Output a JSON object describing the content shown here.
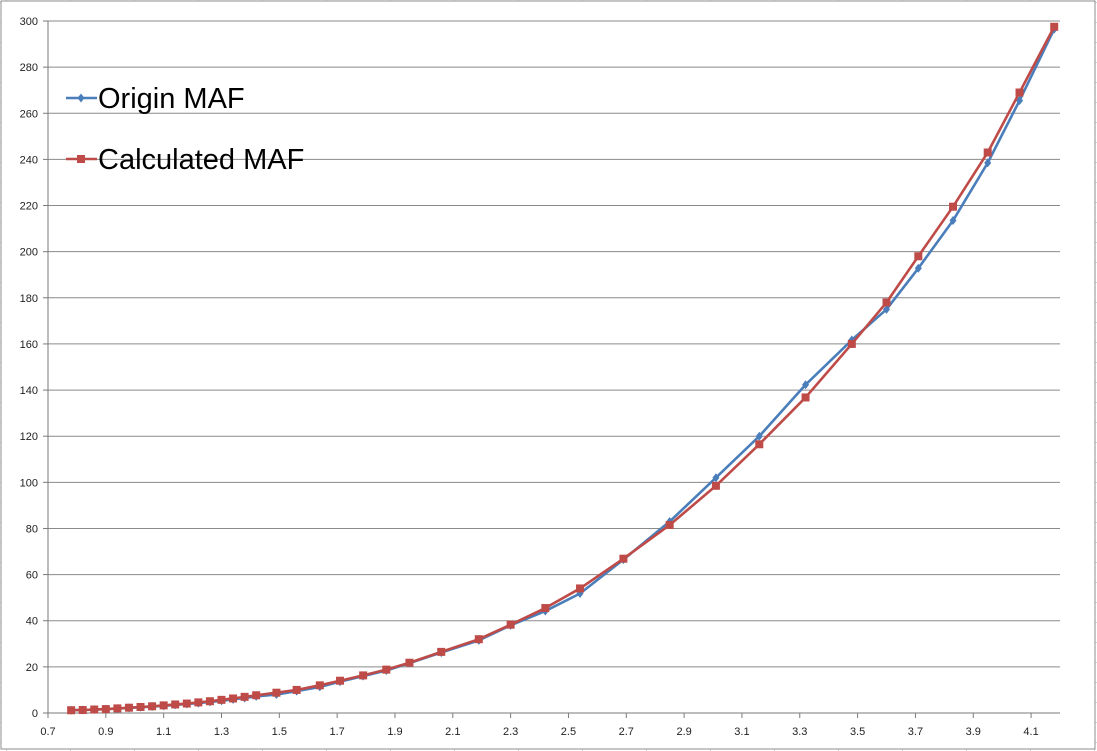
{
  "chart_data": {
    "type": "line",
    "title": "",
    "xlabel": "",
    "ylabel": "",
    "xlim": [
      0.7,
      4.2
    ],
    "ylim": [
      0,
      300
    ],
    "x_ticks": [
      "0.7",
      "0.9",
      "1.1",
      "1.3",
      "1.5",
      "1.7",
      "1.9",
      "2.1",
      "2.3",
      "2.5",
      "2.7",
      "2.9",
      "3.1",
      "3.3",
      "3.5",
      "3.7",
      "3.9",
      "4.1"
    ],
    "y_ticks": [
      "0",
      "20",
      "40",
      "60",
      "80",
      "100",
      "120",
      "140",
      "160",
      "180",
      "200",
      "220",
      "240",
      "260",
      "280",
      "300"
    ],
    "grid": "horizontal",
    "legend_position": "top-left",
    "series": [
      {
        "name": "Origin MAF",
        "color": "#4a7ebb",
        "marker": "diamond",
        "x": [
          0.78,
          0.82,
          0.86,
          0.9,
          0.94,
          0.98,
          1.02,
          1.06,
          1.1,
          1.14,
          1.18,
          1.22,
          1.26,
          1.3,
          1.34,
          1.38,
          1.42,
          1.49,
          1.56,
          1.64,
          1.71,
          1.79,
          1.87,
          1.95,
          2.06,
          2.19,
          2.3,
          2.42,
          2.54,
          2.69,
          2.85,
          3.01,
          3.16,
          3.32,
          3.48,
          3.6,
          3.71,
          3.83,
          3.95,
          4.06,
          4.18
        ],
        "y": [
          1.2,
          1.3,
          1.5,
          1.7,
          1.9,
          2.2,
          2.5,
          2.8,
          3.1,
          3.5,
          3.9,
          4.3,
          4.8,
          5.3,
          5.9,
          6.5,
          7.2,
          8.0,
          9.5,
          11.3,
          13.6,
          16.0,
          18.4,
          21.6,
          26.2,
          31.5,
          38.0,
          44.2,
          51.8,
          66.5,
          83.0,
          102.0,
          120.0,
          142.3,
          161.7,
          175.0,
          192.8,
          213.5,
          238.5,
          265.5,
          296.5
        ]
      },
      {
        "name": "Calculated MAF",
        "color": "#be4b48",
        "marker": "square",
        "x": [
          0.78,
          0.82,
          0.86,
          0.9,
          0.94,
          0.98,
          1.02,
          1.06,
          1.1,
          1.14,
          1.18,
          1.22,
          1.26,
          1.3,
          1.34,
          1.38,
          1.42,
          1.49,
          1.56,
          1.64,
          1.71,
          1.79,
          1.87,
          1.95,
          2.06,
          2.19,
          2.3,
          2.42,
          2.54,
          2.69,
          2.85,
          3.01,
          3.16,
          3.32,
          3.48,
          3.6,
          3.71,
          3.83,
          3.95,
          4.06,
          4.18
        ],
        "y": [
          1.2,
          1.3,
          1.5,
          1.7,
          2.0,
          2.3,
          2.6,
          2.9,
          3.3,
          3.7,
          4.1,
          4.6,
          5.1,
          5.7,
          6.3,
          7.0,
          7.7,
          8.8,
          10.0,
          12.0,
          14.0,
          16.3,
          18.8,
          21.8,
          26.5,
          32.0,
          38.3,
          45.5,
          54.0,
          66.9,
          81.5,
          98.5,
          116.5,
          136.8,
          160.0,
          178.0,
          198.0,
          219.5,
          243.0,
          269.0,
          297.5
        ]
      }
    ]
  }
}
